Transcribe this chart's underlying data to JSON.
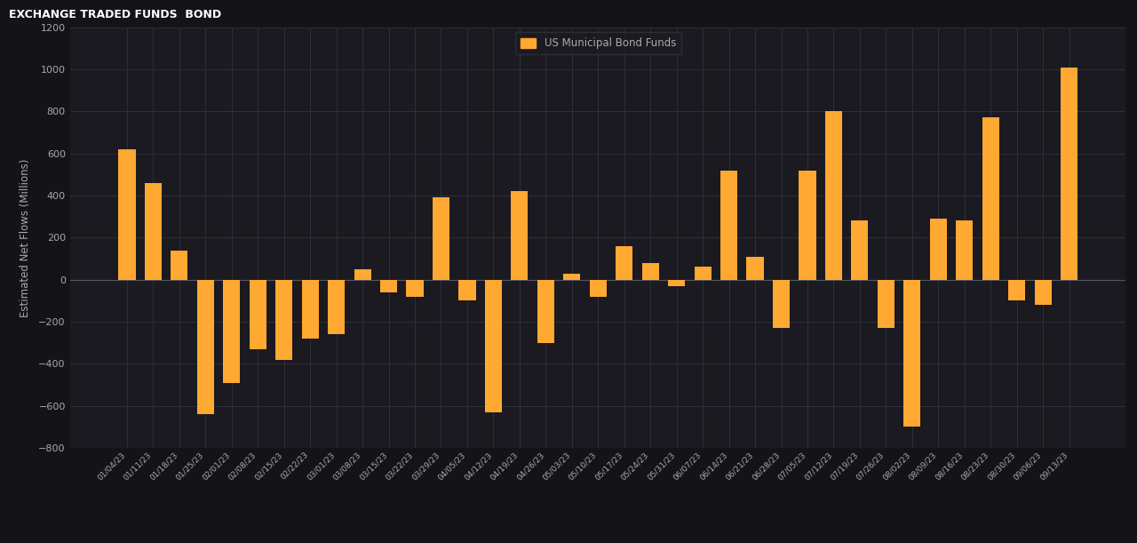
{
  "title": "EXCHANGE TRADED FUNDS  BOND",
  "legend_label": "US Municipal Bond Funds",
  "ylabel": "Estimated Net Flows (Millions)",
  "bar_color": "#FFA832",
  "bg_color": "#141418",
  "plot_bg_color": "#1a1a20",
  "header_bg_color": "#2a2a32",
  "text_color": "#aaaaaa",
  "grid_color": "#333340",
  "categories": [
    "01/04/23",
    "01/11/23",
    "01/18/23",
    "01/25/23",
    "02/01/23",
    "02/08/23",
    "02/15/23",
    "02/22/23",
    "03/01/23",
    "03/08/23",
    "03/15/23",
    "03/22/23",
    "03/29/23",
    "04/05/23",
    "04/12/23",
    "04/19/23",
    "04/26/23",
    "05/03/23",
    "05/10/23",
    "05/17/23",
    "05/24/23",
    "05/31/23",
    "06/07/23",
    "06/14/23",
    "06/21/23",
    "06/28/23",
    "07/05/23",
    "07/12/23",
    "07/19/23",
    "07/26/23",
    "08/02/23",
    "08/09/23",
    "08/16/23",
    "08/23/23",
    "08/30/23",
    "09/06/23",
    "09/13/23"
  ],
  "values": [
    620,
    460,
    140,
    -640,
    -490,
    -330,
    -380,
    -280,
    -260,
    50,
    -60,
    -80,
    390,
    -100,
    -630,
    420,
    -300,
    30,
    -80,
    160,
    80,
    -30,
    60,
    520,
    110,
    -230,
    520,
    800,
    280,
    -230,
    -700,
    290,
    280,
    770,
    -100,
    -120,
    1010
  ],
  "ylim": [
    -800,
    1200
  ],
  "yticks": [
    -800,
    -600,
    -400,
    -200,
    0,
    200,
    400,
    600,
    800,
    1000,
    1200
  ],
  "figsize": [
    12.8,
    6.11
  ],
  "dpi": 100
}
